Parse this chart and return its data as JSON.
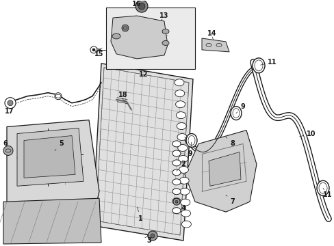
{
  "bg_color": "#ffffff",
  "fig_width": 4.89,
  "fig_height": 3.6,
  "dpi": 100,
  "line_color": "#1a1a1a",
  "label_fontsize": 7.0,
  "label_fontsize_small": 6.5,
  "box_bg": "#e8e8e8",
  "rad_bg": "#e0e0e0",
  "part_bg": "#d4d4d4"
}
